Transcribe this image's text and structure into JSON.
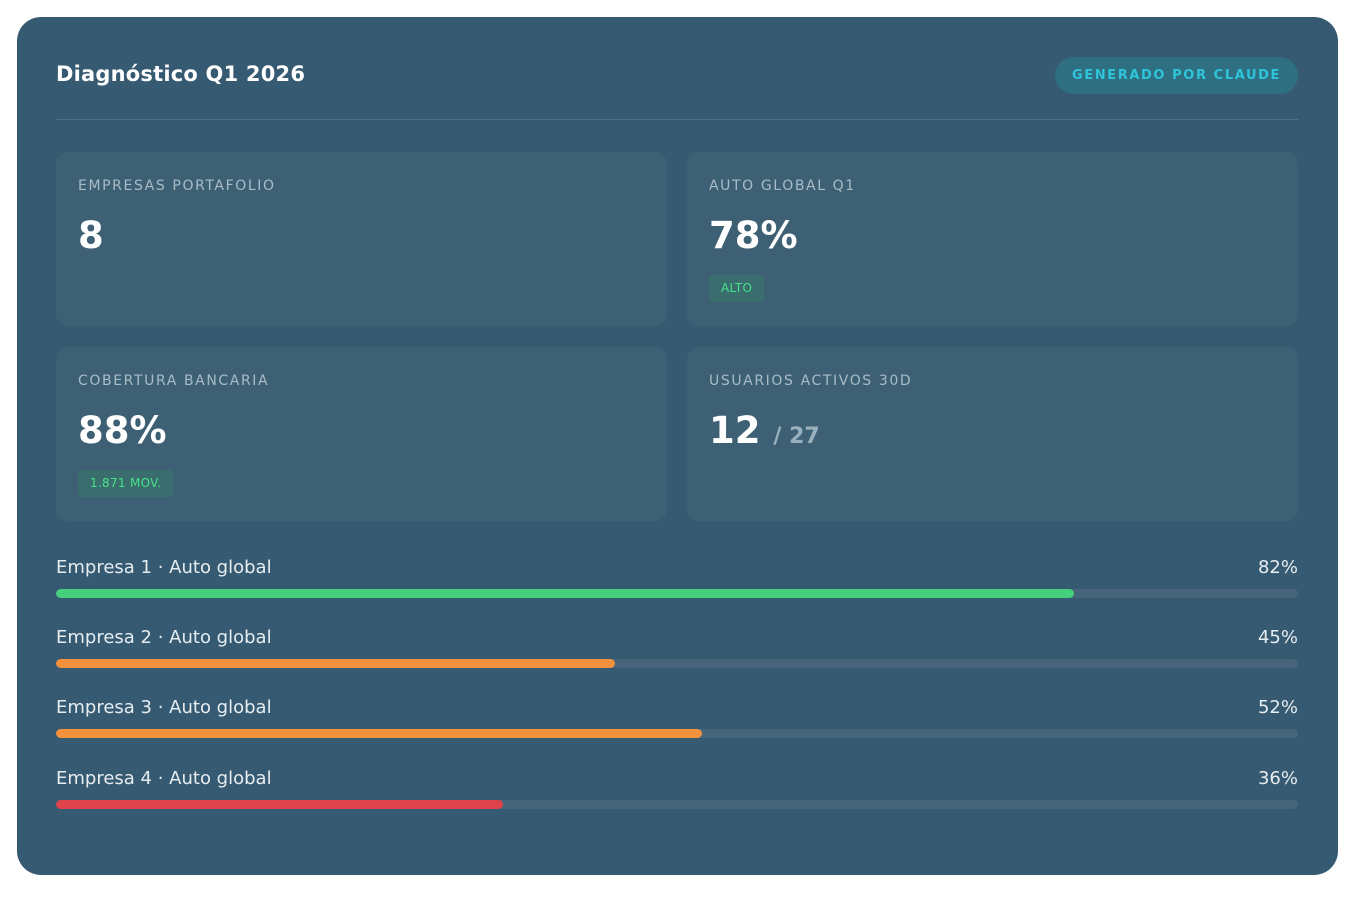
{
  "header": {
    "title": "Diagnóstico Q1 2026",
    "badge": "GENERADO POR CLAUDE"
  },
  "stats": [
    {
      "label": "EMPRESAS PORTAFOLIO",
      "value": "8"
    },
    {
      "label": "AUTO GLOBAL Q1",
      "value": "78%",
      "tag": "ALTO"
    },
    {
      "label": "COBERTURA BANCARIA",
      "value": "88%",
      "tag": "1.871 MOV."
    },
    {
      "label": "USUARIOS ACTIVOS 30D",
      "value": "12",
      "sub": "/ 27"
    }
  ],
  "progress": [
    {
      "label": "Empresa 1 · Auto global",
      "pct_text": "82%",
      "value": 0.82,
      "color": "#44d07c"
    },
    {
      "label": "Empresa 2 · Auto global",
      "pct_text": "45%",
      "value": 0.45,
      "color": "#f4913c"
    },
    {
      "label": "Empresa 3 · Auto global",
      "pct_text": "52%",
      "value": 0.52,
      "color": "#f4913c"
    },
    {
      "label": "Empresa 4 · Auto global",
      "pct_text": "36%",
      "value": 0.36,
      "color": "#e0424c"
    }
  ],
  "colors": {
    "panel_bg": "#365a71",
    "card_bg": "#3e6074",
    "accent_badge": "#2fc4da",
    "tag_green": "#48e28a"
  }
}
